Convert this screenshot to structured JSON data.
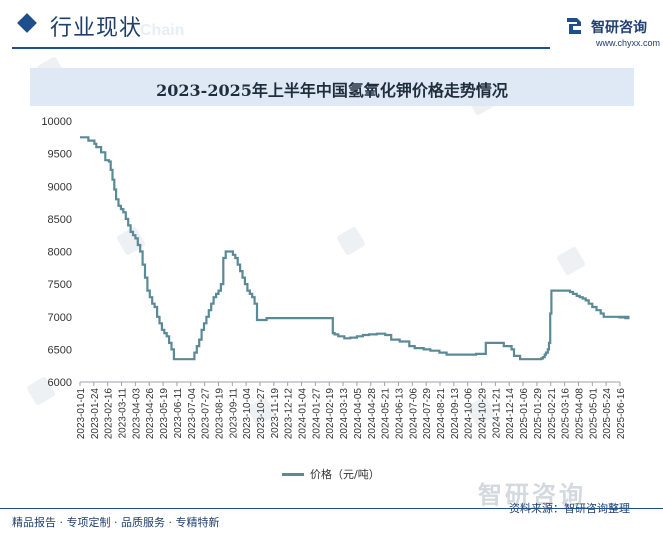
{
  "header": {
    "section_title": "行业现状",
    "section_title_en": "Chain",
    "brand_name": "智研咨询",
    "brand_url": "www.chyxx.com"
  },
  "colors": {
    "accent": "#1f4e8c",
    "line": "#5a8a96",
    "title_bar": "#dfe9f5"
  },
  "footer": {
    "tagline": "精品报告 · 专项定制 · 品质服务 · 专精特新",
    "source": "资料来源：智研咨询整理",
    "watermark": "智研咨询"
  },
  "chart_data": {
    "type": "line",
    "title": "2023-2025年上半年中国氢氧化钾价格走势情况",
    "xlabel": "",
    "ylabel": "",
    "ylim": [
      6000,
      10000
    ],
    "yticks": [
      6000,
      6500,
      7000,
      7500,
      8000,
      8500,
      9000,
      9500,
      10000
    ],
    "xticks": [
      "2023-01-01",
      "2023-01-24",
      "2023-02-16",
      "2023-03-11",
      "2023-04-03",
      "2023-04-26",
      "2023-05-19",
      "2023-06-11",
      "2023-07-04",
      "2023-07-27",
      "2023-08-19",
      "2023-09-11",
      "2023-10-04",
      "2023-10-27",
      "2023-11-19",
      "2023-12-12",
      "2024-01-04",
      "2024-01-27",
      "2024-02-19",
      "2024-03-13",
      "2024-04-05",
      "2024-04-28",
      "2024-05-21",
      "2024-06-13",
      "2024-07-06",
      "2024-07-29",
      "2024-08-21",
      "2024-09-13",
      "2024-10-06",
      "2024-10-29",
      "2024-11-21",
      "2024-12-14",
      "2025-01-06",
      "2025-01-29",
      "2025-02-21",
      "2025-03-16",
      "2025-04-08",
      "2025-05-01",
      "2025-05-24",
      "2025-06-16"
    ],
    "grid": false,
    "legend_position": "bottom",
    "series": [
      {
        "name": "价格（元/吨）",
        "x": [
          "2023-01-01",
          "2023-01-15",
          "2023-01-20",
          "2023-01-25",
          "2023-01-28",
          "2023-02-05",
          "2023-02-12",
          "2023-02-18",
          "2023-02-21",
          "2023-02-24",
          "2023-02-27",
          "2023-03-02",
          "2023-03-06",
          "2023-03-10",
          "2023-03-14",
          "2023-03-18",
          "2023-03-22",
          "2023-03-26",
          "2023-03-30",
          "2023-04-03",
          "2023-04-07",
          "2023-04-11",
          "2023-04-15",
          "2023-04-19",
          "2023-04-23",
          "2023-04-27",
          "2023-05-01",
          "2023-05-05",
          "2023-05-09",
          "2023-05-13",
          "2023-05-17",
          "2023-05-21",
          "2023-05-25",
          "2023-05-29",
          "2023-06-02",
          "2023-06-06",
          "2023-06-10",
          "2023-06-14",
          "2023-06-18",
          "2023-07-01",
          "2023-07-10",
          "2023-07-14",
          "2023-07-18",
          "2023-07-22",
          "2023-07-26",
          "2023-07-30",
          "2023-08-03",
          "2023-08-07",
          "2023-08-11",
          "2023-08-15",
          "2023-08-19",
          "2023-08-23",
          "2023-08-27",
          "2023-08-31",
          "2023-09-04",
          "2023-09-08",
          "2023-09-12",
          "2023-09-16",
          "2023-09-20",
          "2023-09-24",
          "2023-09-28",
          "2023-10-02",
          "2023-10-06",
          "2023-10-10",
          "2023-10-14",
          "2023-10-18",
          "2023-10-22",
          "2023-10-26",
          "2023-10-30",
          "2023-11-03",
          "2023-11-07",
          "2023-11-11",
          "2023-11-15",
          "2023-11-20",
          "2023-12-01",
          "2024-01-01",
          "2024-02-01",
          "2024-02-22",
          "2024-02-25",
          "2024-02-28",
          "2024-03-05",
          "2024-03-15",
          "2024-03-25",
          "2024-04-05",
          "2024-04-15",
          "2024-04-25",
          "2024-05-08",
          "2024-05-15",
          "2024-05-22",
          "2024-06-01",
          "2024-06-15",
          "2024-07-01",
          "2024-07-10",
          "2024-07-25",
          "2024-08-05",
          "2024-08-20",
          "2024-09-01",
          "2024-09-15",
          "2024-10-01",
          "2024-10-10",
          "2024-10-20",
          "2024-10-26",
          "2024-11-05",
          "2024-11-15",
          "2024-11-25",
          "2024-12-05",
          "2024-12-18",
          "2024-12-22",
          "2025-01-01",
          "2025-01-15",
          "2025-01-25",
          "2025-02-01",
          "2025-02-05",
          "2025-02-08",
          "2025-02-11",
          "2025-02-13",
          "2025-02-16",
          "2025-02-18",
          "2025-02-20",
          "2025-02-22",
          "2025-03-10",
          "2025-03-20",
          "2025-03-25",
          "2025-03-30",
          "2025-04-05",
          "2025-04-10",
          "2025-04-15",
          "2025-04-20",
          "2025-04-25",
          "2025-05-01",
          "2025-05-08",
          "2025-05-15",
          "2025-05-20",
          "2025-06-10",
          "2025-06-15",
          "2025-06-25",
          "2025-06-30"
        ],
        "y": [
          9750,
          9700,
          9700,
          9650,
          9600,
          9520,
          9400,
          9380,
          9250,
          9100,
          8950,
          8800,
          8700,
          8650,
          8600,
          8500,
          8400,
          8300,
          8250,
          8200,
          8100,
          8000,
          7800,
          7600,
          7400,
          7300,
          7200,
          7150,
          7000,
          6900,
          6800,
          6750,
          6700,
          6600,
          6500,
          6350,
          6350,
          6350,
          6350,
          6350,
          6450,
          6550,
          6650,
          6800,
          6900,
          7000,
          7100,
          7200,
          7300,
          7350,
          7400,
          7500,
          7900,
          8000,
          8000,
          8000,
          7950,
          7900,
          7800,
          7700,
          7600,
          7500,
          7400,
          7350,
          7300,
          7200,
          6950,
          6950,
          6950,
          6950,
          6980,
          6980,
          6980,
          6980,
          6980,
          6980,
          6980,
          6980,
          6750,
          6730,
          6700,
          6670,
          6680,
          6700,
          6720,
          6730,
          6740,
          6740,
          6720,
          6650,
          6620,
          6550,
          6520,
          6500,
          6480,
          6450,
          6420,
          6420,
          6420,
          6420,
          6430,
          6430,
          6600,
          6600,
          6600,
          6550,
          6500,
          6400,
          6350,
          6350,
          6350,
          6350,
          6360,
          6380,
          6420,
          6450,
          6500,
          6600,
          7050,
          7400,
          7400,
          7400,
          7380,
          7350,
          7320,
          7300,
          7280,
          7250,
          7200,
          7150,
          7100,
          7050,
          7000,
          7000,
          6990,
          6980,
          7000
        ]
      }
    ]
  }
}
